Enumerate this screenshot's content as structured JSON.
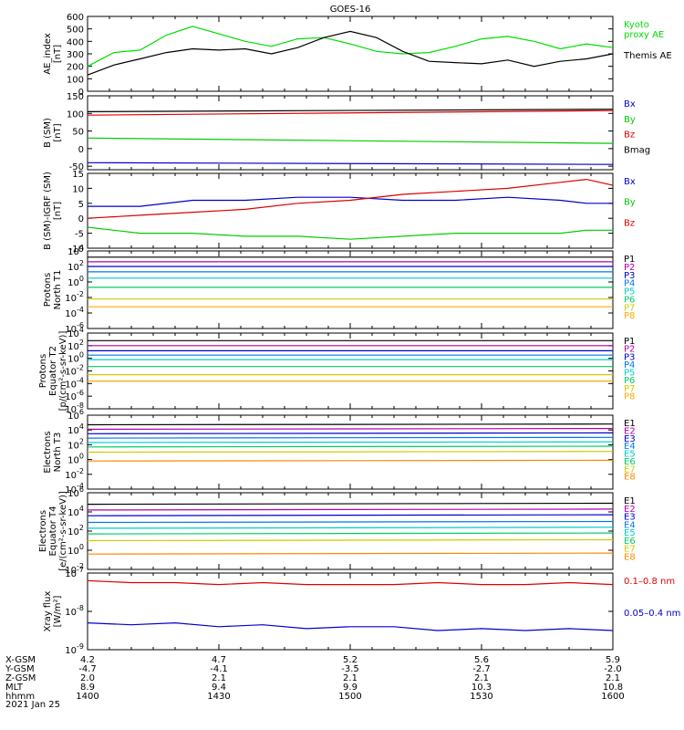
{
  "title": "GOES-16",
  "date_label": "2021 Jan 25",
  "orbit_rows": [
    {
      "label": "X-GSM",
      "values": [
        "4.2",
        "4.7",
        "5.2",
        "5.6",
        "5.9"
      ]
    },
    {
      "label": "Y-GSM",
      "values": [
        "-4.7",
        "-4.1",
        "-3.5",
        "-2.7",
        "-2.0"
      ]
    },
    {
      "label": "Z-GSM",
      "values": [
        "2.0",
        "2.1",
        "2.1",
        "2.1",
        "2.1"
      ]
    },
    {
      "label": "MLT",
      "values": [
        "8.9",
        "9.4",
        "9.9",
        "10.3",
        "10.8"
      ]
    },
    {
      "label": "hhmm",
      "values": [
        "1400",
        "1430",
        "1500",
        "1530",
        "1600"
      ]
    }
  ],
  "chart_data": [
    {
      "type": "line",
      "ylabel": "AE_index\n[nT]",
      "ylim": [
        0,
        600
      ],
      "yticks": [
        "0",
        "100",
        "200",
        "300",
        "400",
        "500",
        "600"
      ],
      "x": [
        0,
        6,
        12,
        18,
        24,
        30,
        36,
        42,
        48,
        54,
        60,
        66,
        72,
        78,
        84,
        90,
        96,
        102,
        108,
        114,
        120
      ],
      "series": [
        {
          "name": "Kyoto\nproxy AE",
          "color": "#00dd00",
          "values": [
            200,
            310,
            330,
            450,
            520,
            460,
            400,
            360,
            420,
            430,
            380,
            320,
            300,
            310,
            360,
            420,
            440,
            400,
            340,
            380,
            350
          ]
        },
        {
          "name": "Themis AE",
          "color": "#000000",
          "values": [
            130,
            210,
            260,
            310,
            340,
            330,
            340,
            300,
            350,
            430,
            480,
            430,
            320,
            240,
            230,
            220,
            250,
            200,
            240,
            260,
            300
          ]
        }
      ]
    },
    {
      "type": "line",
      "ylabel": "B (SM)\n[nT]",
      "ylim": [
        -60,
        150
      ],
      "yticks": [
        "-50",
        "0",
        "50",
        "100",
        "150"
      ],
      "x": [
        0,
        120
      ],
      "series": [
        {
          "name": "Bx",
          "color": "#0000cc",
          "values": [
            -40,
            -45
          ]
        },
        {
          "name": "By",
          "color": "#00cc00",
          "values": [
            30,
            15
          ]
        },
        {
          "name": "Bz",
          "color": "#dd0000",
          "values": [
            95,
            108
          ]
        },
        {
          "name": "Bmag",
          "color": "#000000",
          "values": [
            105,
            112
          ]
        }
      ]
    },
    {
      "type": "line",
      "ylabel": "B (SM)-IGRF (SM)\n[nT]",
      "ylim": [
        -10,
        15
      ],
      "yticks": [
        "-10",
        "-5",
        "0",
        "5",
        "10",
        "15"
      ],
      "x": [
        0,
        12,
        24,
        36,
        48,
        60,
        72,
        84,
        96,
        108,
        114,
        120
      ],
      "series": [
        {
          "name": "Bx",
          "color": "#0000cc",
          "values": [
            4,
            4,
            6,
            6,
            7,
            7,
            6,
            6,
            7,
            6,
            5,
            5
          ]
        },
        {
          "name": "By",
          "color": "#00cc00",
          "values": [
            -3,
            -5,
            -5,
            -6,
            -6,
            -7,
            -6,
            -5,
            -5,
            -5,
            -4,
            -4
          ]
        },
        {
          "name": "Bz",
          "color": "#dd0000",
          "values": [
            0,
            1,
            2,
            3,
            5,
            6,
            8,
            9,
            10,
            12,
            13,
            11
          ]
        }
      ]
    },
    {
      "type": "line",
      "log": true,
      "ylabel": "Protons\nNorth T1",
      "ylim": [
        -6,
        4
      ],
      "yticks": [
        "10^4",
        "10^2",
        "10^0",
        "10^-2",
        "10^-4",
        "10^-6"
      ],
      "x": [
        0,
        120
      ],
      "series": [
        {
          "name": "P1",
          "color": "#000000",
          "values": [
            3.2,
            3.2
          ]
        },
        {
          "name": "P2",
          "color": "#b000b0",
          "values": [
            2.6,
            2.6
          ]
        },
        {
          "name": "P3",
          "color": "#0000cc",
          "values": [
            2.0,
            2.0
          ]
        },
        {
          "name": "P4",
          "color": "#0077ee",
          "values": [
            1.3,
            1.3
          ]
        },
        {
          "name": "P5",
          "color": "#00cccc",
          "values": [
            0.5,
            0.5
          ]
        },
        {
          "name": "P6",
          "color": "#00cc66",
          "values": [
            -0.7,
            -0.7
          ]
        },
        {
          "name": "P7",
          "color": "#cccc00",
          "values": [
            -2.2,
            -2.2
          ]
        },
        {
          "name": "P8",
          "color": "#ffaa00",
          "values": [
            -3.2,
            -3.2
          ]
        }
      ]
    },
    {
      "type": "line",
      "log": true,
      "ylabel": "Protons\nEquator T2\n[p/(cm²-s-sr-keV)]",
      "ylim": [
        -8,
        4
      ],
      "yticks": [
        "10^4",
        "10^2",
        "10^0",
        "10^-2",
        "10^-4",
        "10^-6",
        "10^-8"
      ],
      "x": [
        0,
        120
      ],
      "series": [
        {
          "name": "P1",
          "color": "#000000",
          "values": [
            2.8,
            2.8
          ]
        },
        {
          "name": "P2",
          "color": "#b000b0",
          "values": [
            2.0,
            2.0
          ]
        },
        {
          "name": "P3",
          "color": "#0000cc",
          "values": [
            1.2,
            1.2
          ]
        },
        {
          "name": "P4",
          "color": "#0077ee",
          "values": [
            0.5,
            0.5
          ]
        },
        {
          "name": "P5",
          "color": "#00cccc",
          "values": [
            -0.2,
            -0.2
          ]
        },
        {
          "name": "P6",
          "color": "#00cc66",
          "values": [
            -1.3,
            -1.3
          ]
        },
        {
          "name": "P7",
          "color": "#cccc00",
          "values": [
            -2.6,
            -2.6
          ]
        },
        {
          "name": "P8",
          "color": "#ffaa00",
          "values": [
            -3.6,
            -3.6
          ]
        }
      ]
    },
    {
      "type": "line",
      "log": true,
      "ylabel": "Electrons\nNorth T3",
      "ylim": [
        -4,
        6
      ],
      "yticks": [
        "10^6",
        "10^4",
        "10^2",
        "10^0",
        "10^-2",
        "10^-4"
      ],
      "x": [
        0,
        120
      ],
      "series": [
        {
          "name": "E1",
          "color": "#000000",
          "values": [
            4.7,
            4.8
          ]
        },
        {
          "name": "E2",
          "color": "#b000b0",
          "values": [
            4.1,
            4.2
          ]
        },
        {
          "name": "E3",
          "color": "#0000cc",
          "values": [
            3.5,
            3.6
          ]
        },
        {
          "name": "E4",
          "color": "#0077ee",
          "values": [
            2.9,
            3.0
          ]
        },
        {
          "name": "E5",
          "color": "#00cccc",
          "values": [
            2.3,
            2.4
          ]
        },
        {
          "name": "E6",
          "color": "#00cc66",
          "values": [
            1.7,
            1.8
          ]
        },
        {
          "name": "E7",
          "color": "#cccc00",
          "values": [
            1.0,
            1.1
          ]
        },
        {
          "name": "E8",
          "color": "#ff8800",
          "values": [
            -0.2,
            -0.1
          ]
        }
      ]
    },
    {
      "type": "line",
      "log": true,
      "ylabel": "Electrons\nEquator T4\n[e/(cm²-s-sr-keV)]",
      "ylim": [
        -2,
        6
      ],
      "yticks": [
        "10^6",
        "10^4",
        "10^2",
        "10^0",
        "10^-2"
      ],
      "x": [
        0,
        120
      ],
      "series": [
        {
          "name": "E1",
          "color": "#000000",
          "values": [
            4.8,
            4.9
          ]
        },
        {
          "name": "E2",
          "color": "#b000b0",
          "values": [
            4.2,
            4.3
          ]
        },
        {
          "name": "E3",
          "color": "#0000cc",
          "values": [
            3.6,
            3.7
          ]
        },
        {
          "name": "E4",
          "color": "#0077ee",
          "values": [
            2.9,
            3.0
          ]
        },
        {
          "name": "E5",
          "color": "#00cccc",
          "values": [
            2.3,
            2.4
          ]
        },
        {
          "name": "E6",
          "color": "#00cc66",
          "values": [
            1.7,
            1.8
          ]
        },
        {
          "name": "E7",
          "color": "#cccc00",
          "values": [
            1.0,
            1.1
          ]
        },
        {
          "name": "E8",
          "color": "#ff8800",
          "values": [
            -0.4,
            -0.3
          ]
        }
      ]
    },
    {
      "type": "line",
      "log": true,
      "ylabel": "Xray flux\n[W/m²]",
      "ylim": [
        -9,
        -7
      ],
      "yticks": [
        "10^-7",
        "10^-8",
        "10^-9"
      ],
      "x": [
        0,
        10,
        20,
        30,
        40,
        50,
        60,
        70,
        80,
        90,
        100,
        110,
        120
      ],
      "series": [
        {
          "name": "0.1–0.8 nm",
          "color": "#dd0000",
          "values": [
            -7.2,
            -7.25,
            -7.25,
            -7.3,
            -7.25,
            -7.3,
            -7.3,
            -7.3,
            -7.25,
            -7.3,
            -7.3,
            -7.25,
            -7.3
          ]
        },
        {
          "name": "0.05–0.4 nm",
          "color": "#0000cc",
          "values": [
            -8.3,
            -8.35,
            -8.3,
            -8.4,
            -8.35,
            -8.45,
            -8.4,
            -8.4,
            -8.5,
            -8.45,
            -8.5,
            -8.45,
            -8.5
          ]
        }
      ]
    }
  ]
}
